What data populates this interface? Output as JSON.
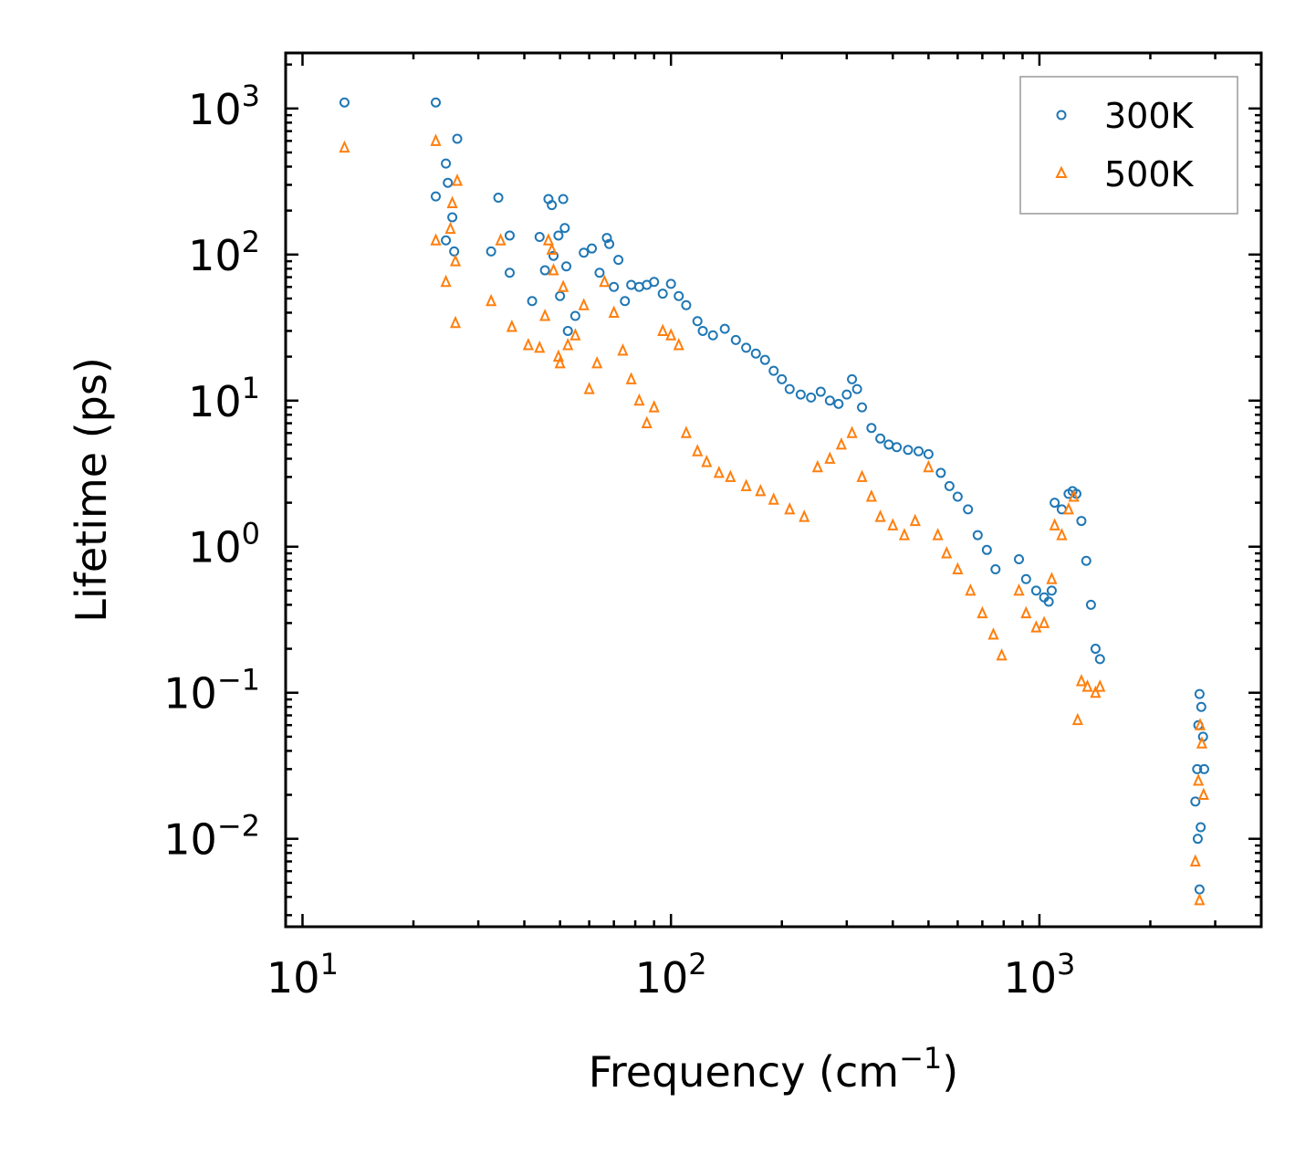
{
  "chart_data": {
    "type": "scatter",
    "title": "",
    "xlabel": "Frequency (cm",
    "xlabel_exp": "−1",
    "xlabel_tail": ")",
    "ylabel": "Lifetime (ps)",
    "xscale": "log",
    "yscale": "log",
    "xlim": [
      9.0,
      4000
    ],
    "ylim": [
      0.0025,
      2400
    ],
    "grid": false,
    "legend_position": "top-right",
    "x_ticks": [
      {
        "value": 10,
        "base": "10",
        "exp": "1"
      },
      {
        "value": 100,
        "base": "10",
        "exp": "2"
      },
      {
        "value": 1000,
        "base": "10",
        "exp": "3"
      }
    ],
    "y_ticks": [
      {
        "value": 0.01,
        "base": "10",
        "exp": "−2"
      },
      {
        "value": 0.1,
        "base": "10",
        "exp": "−1"
      },
      {
        "value": 1,
        "base": "10",
        "exp": "0"
      },
      {
        "value": 10,
        "base": "10",
        "exp": "1"
      },
      {
        "value": 100,
        "base": "10",
        "exp": "2"
      },
      {
        "value": 1000,
        "base": "10",
        "exp": "3"
      }
    ],
    "series": [
      {
        "name": "300K",
        "marker": "circle",
        "color": "#1f77b4",
        "points": [
          [
            13,
            1100
          ],
          [
            23,
            1100
          ],
          [
            24.5,
            420
          ],
          [
            24.8,
            310
          ],
          [
            23,
            250
          ],
          [
            25.5,
            180
          ],
          [
            26.3,
            620
          ],
          [
            25.8,
            105
          ],
          [
            24.5,
            125
          ],
          [
            32.5,
            105
          ],
          [
            34,
            245
          ],
          [
            36.5,
            135
          ],
          [
            36.5,
            75
          ],
          [
            42,
            48
          ],
          [
            44,
            132
          ],
          [
            45.5,
            78
          ],
          [
            46.5,
            240
          ],
          [
            47.5,
            218
          ],
          [
            48,
            98
          ],
          [
            49.5,
            135
          ],
          [
            50,
            52
          ],
          [
            51,
            240
          ],
          [
            51.5,
            152
          ],
          [
            52,
            83
          ],
          [
            52.5,
            30
          ],
          [
            55,
            38
          ],
          [
            58,
            103
          ],
          [
            61,
            110
          ],
          [
            64,
            75
          ],
          [
            67,
            130
          ],
          [
            68,
            118
          ],
          [
            70,
            60
          ],
          [
            72,
            92
          ],
          [
            75,
            48
          ],
          [
            78,
            62
          ],
          [
            82,
            60
          ],
          [
            86,
            62
          ],
          [
            90,
            65
          ],
          [
            95,
            54
          ],
          [
            100,
            63
          ],
          [
            105,
            52
          ],
          [
            110,
            45
          ],
          [
            118,
            35
          ],
          [
            122,
            30
          ],
          [
            130,
            28
          ],
          [
            140,
            31
          ],
          [
            150,
            26
          ],
          [
            160,
            23
          ],
          [
            170,
            21
          ],
          [
            180,
            19
          ],
          [
            190,
            16
          ],
          [
            200,
            14
          ],
          [
            210,
            12
          ],
          [
            225,
            11
          ],
          [
            240,
            10.5
          ],
          [
            255,
            11.5
          ],
          [
            270,
            10
          ],
          [
            285,
            9.5
          ],
          [
            300,
            11
          ],
          [
            310,
            14
          ],
          [
            320,
            12
          ],
          [
            330,
            9
          ],
          [
            350,
            6.5
          ],
          [
            370,
            5.5
          ],
          [
            390,
            5
          ],
          [
            410,
            4.8
          ],
          [
            440,
            4.6
          ],
          [
            470,
            4.5
          ],
          [
            500,
            4.3
          ],
          [
            540,
            3.2
          ],
          [
            570,
            2.6
          ],
          [
            600,
            2.2
          ],
          [
            640,
            1.8
          ],
          [
            680,
            1.2
          ],
          [
            720,
            0.95
          ],
          [
            760,
            0.7
          ],
          [
            880,
            0.82
          ],
          [
            920,
            0.6
          ],
          [
            980,
            0.5
          ],
          [
            1030,
            0.45
          ],
          [
            1060,
            0.42
          ],
          [
            1080,
            0.5
          ],
          [
            1100,
            2.0
          ],
          [
            1150,
            1.8
          ],
          [
            1200,
            2.3
          ],
          [
            1230,
            2.4
          ],
          [
            1260,
            2.3
          ],
          [
            1300,
            1.5
          ],
          [
            1340,
            0.8
          ],
          [
            1380,
            0.4
          ],
          [
            1420,
            0.2
          ],
          [
            1460,
            0.17
          ],
          [
            2650,
            0.018
          ],
          [
            2680,
            0.03
          ],
          [
            2700,
            0.06
          ],
          [
            2720,
            0.098
          ],
          [
            2750,
            0.08
          ],
          [
            2780,
            0.05
          ],
          [
            2800,
            0.03
          ],
          [
            2720,
            0.0045
          ],
          [
            2690,
            0.01
          ],
          [
            2740,
            0.012
          ]
        ]
      },
      {
        "name": "500K",
        "marker": "triangle",
        "color": "#ff7f0e",
        "points": [
          [
            13,
            540
          ],
          [
            23,
            600
          ],
          [
            23,
            125
          ],
          [
            24.5,
            65
          ],
          [
            25.2,
            150
          ],
          [
            25.5,
            225
          ],
          [
            26,
            90
          ],
          [
            26.3,
            320
          ],
          [
            26,
            34
          ],
          [
            32.5,
            48
          ],
          [
            34.5,
            125
          ],
          [
            37,
            32
          ],
          [
            41,
            24
          ],
          [
            44,
            23
          ],
          [
            45.5,
            38
          ],
          [
            46.5,
            125
          ],
          [
            47.5,
            108
          ],
          [
            48,
            78
          ],
          [
            49.5,
            20
          ],
          [
            50,
            18
          ],
          [
            51,
            60
          ],
          [
            52.5,
            24
          ],
          [
            55,
            28
          ],
          [
            58,
            45
          ],
          [
            60,
            12
          ],
          [
            63,
            18
          ],
          [
            66,
            65
          ],
          [
            70,
            40
          ],
          [
            74,
            22
          ],
          [
            78,
            14
          ],
          [
            82,
            10
          ],
          [
            86,
            7
          ],
          [
            90,
            9
          ],
          [
            95,
            30
          ],
          [
            100,
            28
          ],
          [
            105,
            24
          ],
          [
            110,
            6
          ],
          [
            118,
            4.5
          ],
          [
            125,
            3.8
          ],
          [
            135,
            3.2
          ],
          [
            145,
            3
          ],
          [
            160,
            2.6
          ],
          [
            175,
            2.4
          ],
          [
            190,
            2.1
          ],
          [
            210,
            1.8
          ],
          [
            230,
            1.6
          ],
          [
            250,
            3.5
          ],
          [
            270,
            4
          ],
          [
            290,
            5
          ],
          [
            310,
            6
          ],
          [
            330,
            3
          ],
          [
            350,
            2.2
          ],
          [
            370,
            1.6
          ],
          [
            400,
            1.4
          ],
          [
            430,
            1.2
          ],
          [
            460,
            1.5
          ],
          [
            500,
            3.5
          ],
          [
            530,
            1.2
          ],
          [
            560,
            0.9
          ],
          [
            600,
            0.7
          ],
          [
            650,
            0.5
          ],
          [
            700,
            0.35
          ],
          [
            750,
            0.25
          ],
          [
            790,
            0.18
          ],
          [
            880,
            0.5
          ],
          [
            920,
            0.35
          ],
          [
            980,
            0.28
          ],
          [
            1030,
            0.3
          ],
          [
            1080,
            0.6
          ],
          [
            1100,
            1.4
          ],
          [
            1150,
            1.2
          ],
          [
            1200,
            1.8
          ],
          [
            1240,
            2.2
          ],
          [
            1270,
            0.065
          ],
          [
            1300,
            0.12
          ],
          [
            1350,
            0.11
          ],
          [
            1420,
            0.1
          ],
          [
            1460,
            0.11
          ],
          [
            2650,
            0.007
          ],
          [
            2700,
            0.025
          ],
          [
            2730,
            0.06
          ],
          [
            2760,
            0.045
          ],
          [
            2790,
            0.02
          ],
          [
            2720,
            0.0038
          ]
        ]
      }
    ]
  }
}
